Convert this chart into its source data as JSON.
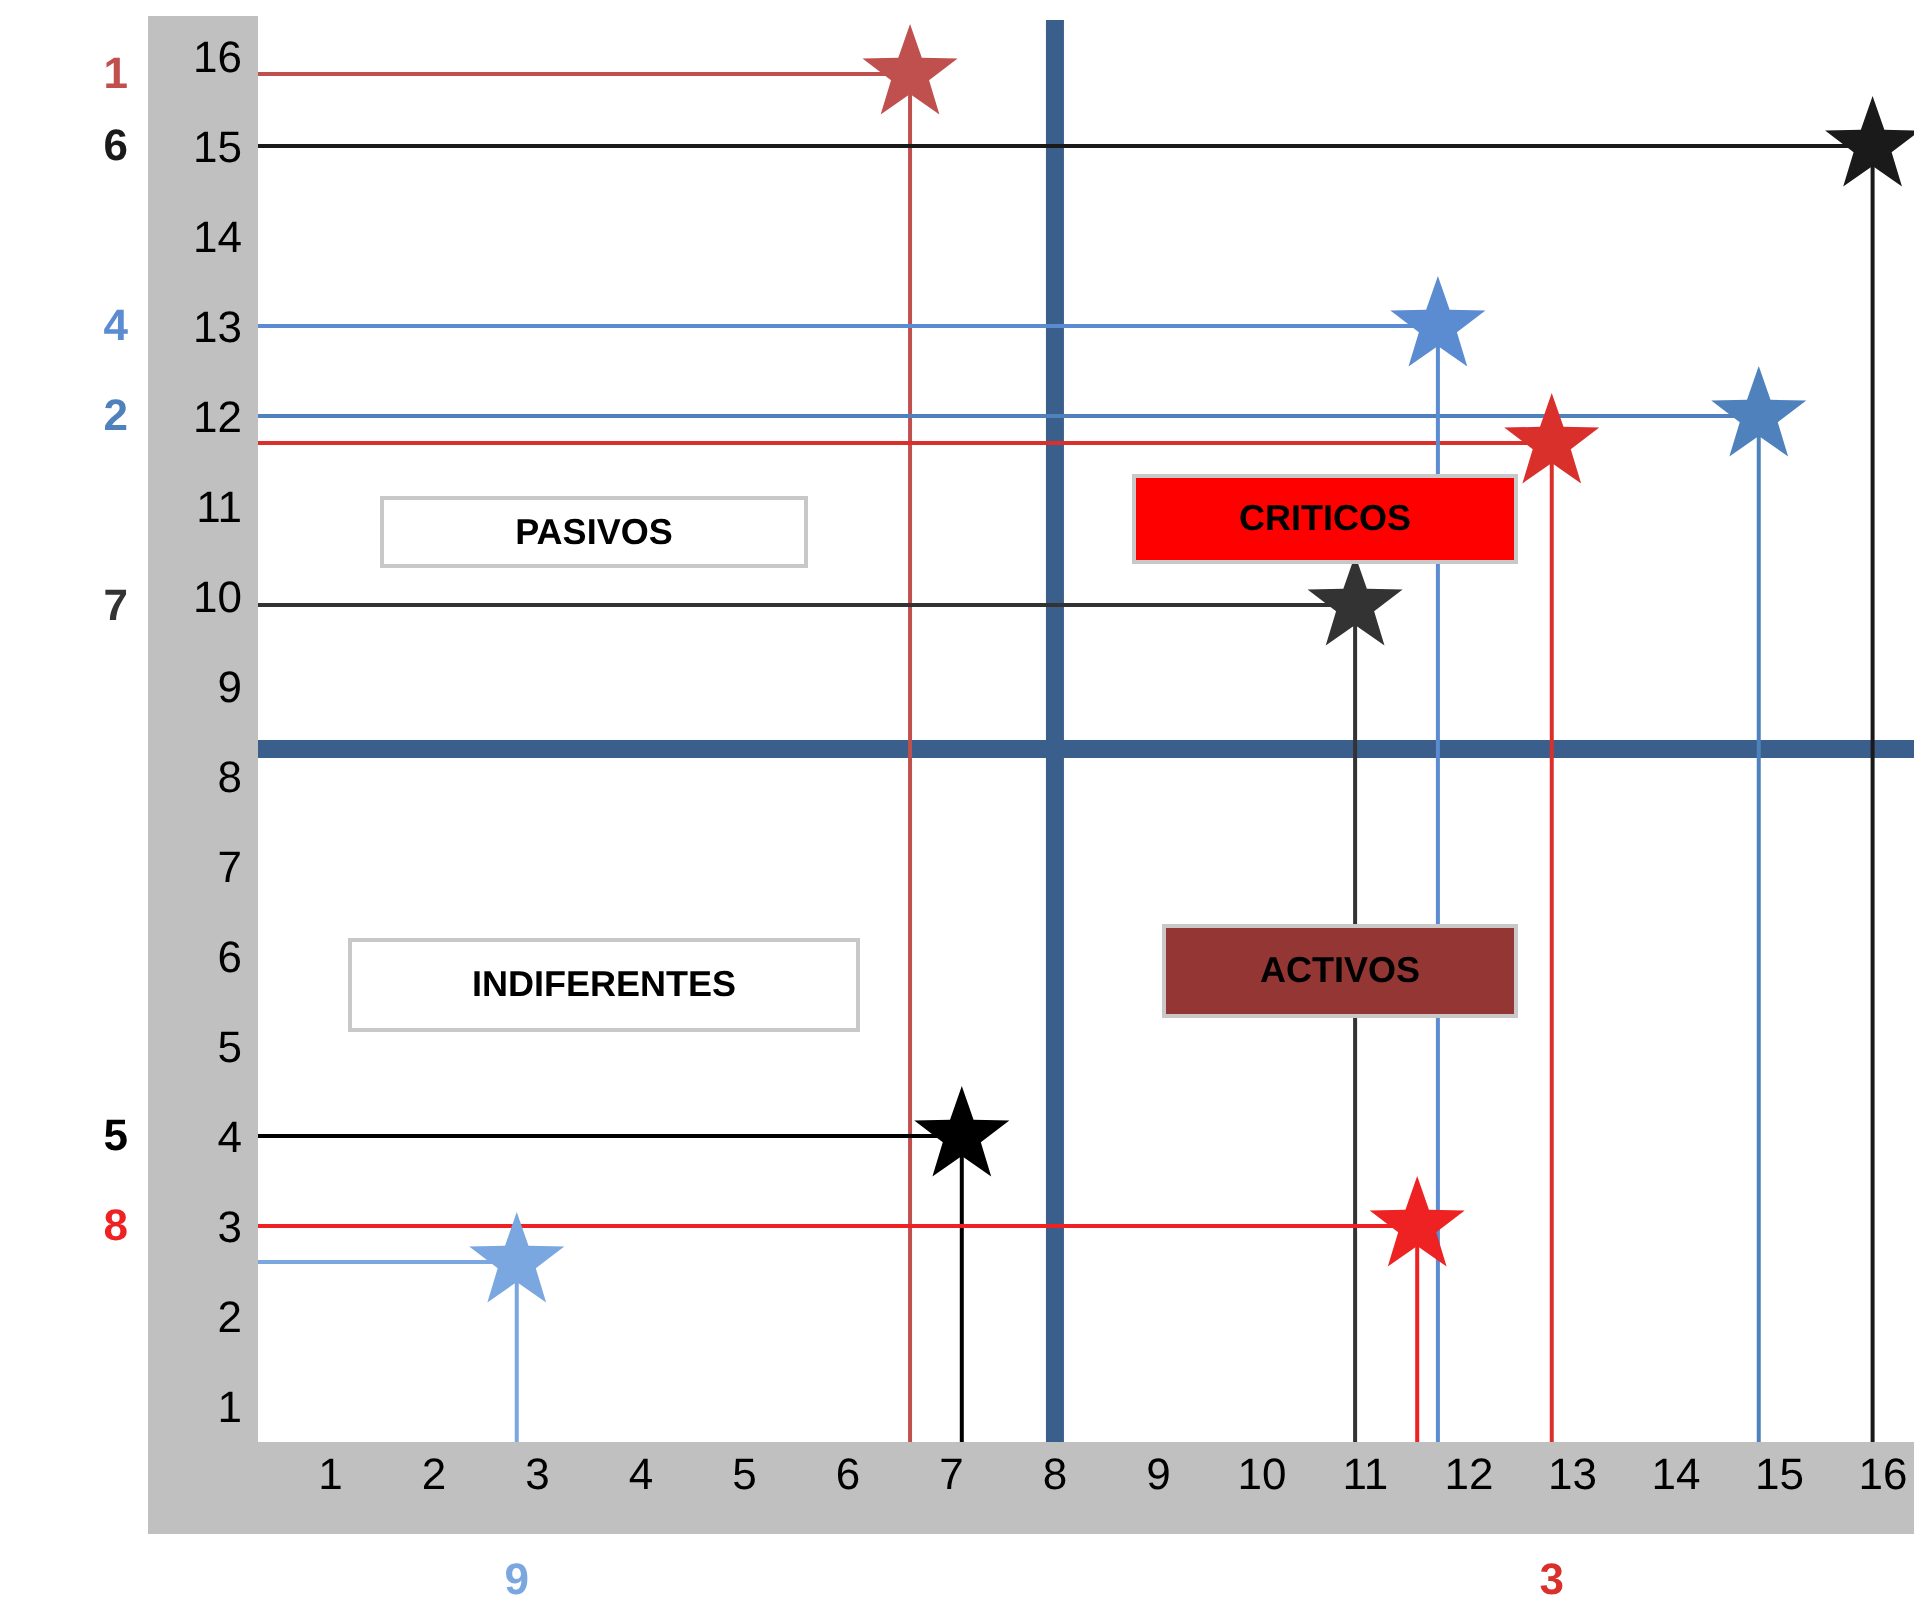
{
  "chart_data": {
    "type": "scatter",
    "marker": "star",
    "legend": false,
    "grid": false,
    "xlim": [
      0.3,
      16.3
    ],
    "xticks": [
      1,
      2,
      3,
      4,
      5,
      6,
      7,
      8,
      9,
      10,
      11,
      12,
      13,
      14,
      15,
      16
    ],
    "ylim": [
      0.6,
      16.4
    ],
    "yticks": [
      1,
      2,
      3,
      4,
      5,
      6,
      7,
      8,
      9,
      10,
      11,
      12,
      13,
      14,
      15,
      16
    ],
    "annotations": [
      "PASIVOS",
      "CRITICOS",
      "INDIFERENTES",
      "ACTIVOS"
    ],
    "ref_lines": [
      {
        "axis": "x",
        "value": 8,
        "color": "#3a5f8c"
      },
      {
        "axis": "y",
        "value": 8.3,
        "color": "#3a5f8c"
      }
    ],
    "series": [
      {
        "name": "1",
        "color": "#c0504d",
        "x": [
          6.6
        ],
        "values": [
          15.8
        ],
        "errors": [
          [
            0.6,
            15.8
          ]
        ],
        "xerrors": [
          [
            0.3,
            6.6
          ]
        ]
      },
      {
        "name": "2",
        "color": "#4f81bd",
        "x": [
          14.8
        ],
        "values": [
          12
        ],
        "errors": [
          [
            0.6,
            12
          ]
        ],
        "xerrors": [
          [
            0.3,
            14.8
          ]
        ]
      },
      {
        "name": "3",
        "color": "#d9302c",
        "x": [
          12.8
        ],
        "values": [
          11.7
        ],
        "errors": [
          [
            0.6,
            11.7
          ]
        ],
        "xerrors": [
          [
            0.3,
            12.8
          ]
        ]
      },
      {
        "name": "4",
        "color": "#5b8bd0",
        "x": [
          11.7
        ],
        "values": [
          13
        ],
        "errors": [
          [
            0.6,
            13
          ]
        ],
        "xerrors": [
          [
            0.3,
            11.7
          ]
        ]
      },
      {
        "name": "5",
        "color": "#000000",
        "x": [
          7.1
        ],
        "values": [
          4
        ],
        "errors": [
          [
            0.6,
            4
          ]
        ],
        "xerrors": [
          [
            0.3,
            7.1
          ]
        ]
      },
      {
        "name": "6",
        "color": "#1a1a1a",
        "x": [
          15.9
        ],
        "values": [
          15
        ],
        "errors": [
          [
            0.6,
            15
          ]
        ],
        "xerrors": [
          [
            0.3,
            15.9
          ]
        ]
      },
      {
        "name": "7",
        "color": "#333333",
        "x": [
          10.9
        ],
        "values": [
          9.9
        ],
        "errors": [
          [
            0.6,
            9.9
          ]
        ],
        "xerrors": [
          [
            0.3,
            10.9
          ]
        ]
      },
      {
        "name": "8",
        "color": "#ee2222",
        "x": [
          11.5
        ],
        "values": [
          3
        ],
        "errors": [
          [
            0.6,
            3
          ]
        ],
        "xerrors": [
          [
            0.3,
            11.5
          ]
        ]
      },
      {
        "name": "9",
        "color": "#7aa7e0",
        "x": [
          2.8
        ],
        "values": [
          2.6
        ],
        "errors": [
          [
            0.6,
            2.6
          ]
        ],
        "xerrors": [
          [
            0.3,
            2.8
          ]
        ]
      }
    ]
  }
}
